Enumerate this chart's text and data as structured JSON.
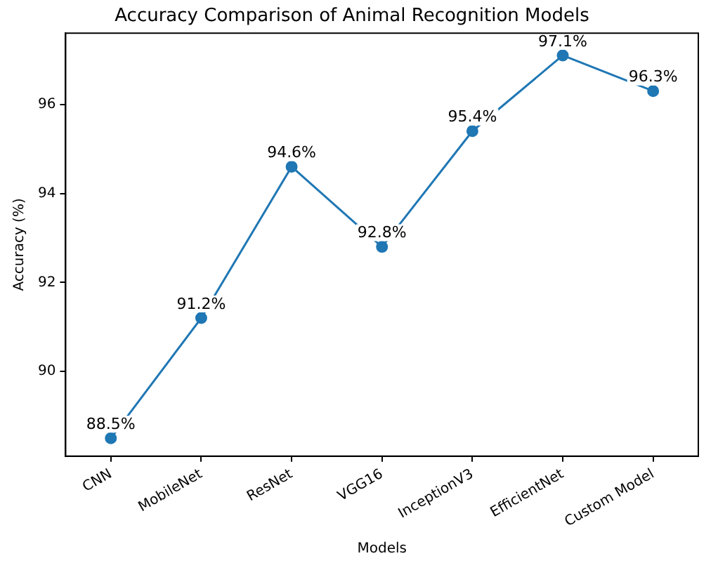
{
  "chart_data": {
    "type": "line",
    "title": "Accuracy Comparison of Animal Recognition Models",
    "xlabel": "Models",
    "ylabel": "Accuracy (%)",
    "categories": [
      "CNN",
      "MobileNet",
      "ResNet",
      "VGG16",
      "InceptionV3",
      "EfficientNet",
      "Custom Model"
    ],
    "series": [
      {
        "color": "#1f77b4",
        "values": [
          88.5,
          91.2,
          94.6,
          92.8,
          95.4,
          97.1,
          96.3
        ],
        "value_labels": [
          "88.5%",
          "91.2%",
          "94.6%",
          "92.8%",
          "95.4%",
          "97.1%",
          "96.3%"
        ]
      }
    ],
    "ylim": [
      88.1,
      97.6
    ],
    "yticks": [
      90,
      92,
      94,
      96
    ],
    "marker": "circle",
    "line_style": "solid",
    "grid": false,
    "legend": false
  }
}
